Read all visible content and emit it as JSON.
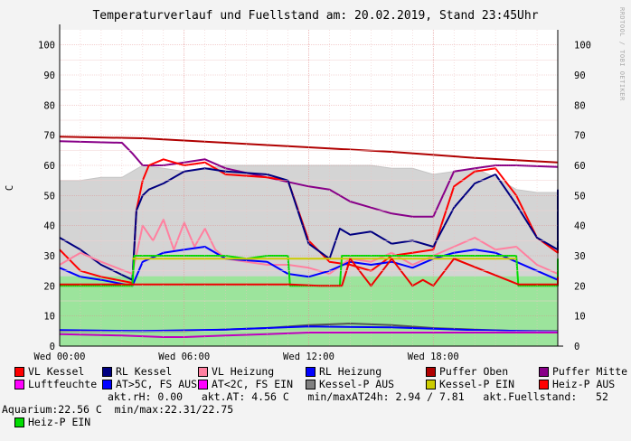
{
  "header": {
    "title": "Temperaturverlauf und Fuellstand am: 20.02.2019, Stand 23:45Uhr",
    "side_note": "RRDTOOL / TOBI OETIKER"
  },
  "chart_data": {
    "type": "line",
    "ylabel": "C",
    "ylim": [
      0,
      105
    ],
    "yticks": [
      0,
      10,
      20,
      30,
      40,
      50,
      60,
      70,
      80,
      90,
      100
    ],
    "xlim_hours": [
      0,
      24
    ],
    "xticks": [
      {
        "h": 0,
        "label": "Wed 00:00"
      },
      {
        "h": 6,
        "label": "Wed 06:00"
      },
      {
        "h": 12,
        "label": "Wed 12:00"
      },
      {
        "h": 18,
        "label": "Wed 18:00"
      }
    ],
    "grid": true,
    "series": [
      {
        "name": "Fuellstand",
        "kind": "area",
        "color": "#d4d4d4",
        "stroke": "#c4c4c4",
        "points": [
          [
            0,
            55
          ],
          [
            1,
            55
          ],
          [
            2,
            56
          ],
          [
            3,
            56
          ],
          [
            4,
            60
          ],
          [
            5,
            59
          ],
          [
            6,
            58
          ],
          [
            7,
            59
          ],
          [
            8,
            60
          ],
          [
            9,
            60
          ],
          [
            10,
            60
          ],
          [
            11,
            60
          ],
          [
            12,
            60
          ],
          [
            13,
            60
          ],
          [
            14,
            60
          ],
          [
            15,
            60
          ],
          [
            16,
            59
          ],
          [
            17,
            59
          ],
          [
            18,
            57
          ],
          [
            19,
            58
          ],
          [
            20,
            59
          ],
          [
            21,
            56
          ],
          [
            22,
            52
          ],
          [
            23,
            51
          ],
          [
            24,
            51
          ]
        ]
      },
      {
        "name": "Heiz-P EIN (area)",
        "kind": "area",
        "color": "#9ce49c",
        "stroke": "#9ce49c",
        "points": [
          [
            0,
            23
          ],
          [
            24,
            23
          ]
        ]
      },
      {
        "name": "Puffer Oben",
        "color": "#b00000",
        "points": [
          [
            0,
            69.5
          ],
          [
            4,
            69
          ],
          [
            8,
            67.5
          ],
          [
            12,
            66
          ],
          [
            16,
            64.5
          ],
          [
            20,
            62.5
          ],
          [
            24,
            61
          ]
        ]
      },
      {
        "name": "Puffer Mitte",
        "color": "#880088",
        "points": [
          [
            0,
            68
          ],
          [
            3,
            67.5
          ],
          [
            3.5,
            64
          ],
          [
            4,
            60
          ],
          [
            5,
            60
          ],
          [
            6,
            61
          ],
          [
            7,
            62
          ],
          [
            8,
            59
          ],
          [
            10,
            56
          ],
          [
            12,
            53
          ],
          [
            13,
            52
          ],
          [
            14,
            48
          ],
          [
            15,
            46
          ],
          [
            16,
            44
          ],
          [
            17,
            43
          ],
          [
            18,
            43
          ],
          [
            19,
            58
          ],
          [
            20,
            59
          ],
          [
            21,
            60
          ],
          [
            22,
            60
          ],
          [
            24,
            59.5
          ]
        ]
      },
      {
        "name": "VL Kessel",
        "color": "#ff0000",
        "points": [
          [
            0,
            32
          ],
          [
            1,
            25
          ],
          [
            2,
            23
          ],
          [
            3.5,
            21
          ],
          [
            3.7,
            45
          ],
          [
            4,
            55
          ],
          [
            4.3,
            60
          ],
          [
            5,
            62
          ],
          [
            6,
            60
          ],
          [
            7,
            61
          ],
          [
            8,
            57
          ],
          [
            10,
            56
          ],
          [
            11,
            55
          ],
          [
            12,
            35
          ],
          [
            13,
            28
          ],
          [
            14,
            27
          ],
          [
            15,
            25
          ],
          [
            16,
            30
          ],
          [
            17,
            31
          ],
          [
            18,
            32
          ],
          [
            19,
            53
          ],
          [
            20,
            58
          ],
          [
            21,
            59
          ],
          [
            22,
            50
          ],
          [
            23,
            36
          ],
          [
            24,
            31
          ],
          [
            24,
            51
          ]
        ]
      },
      {
        "name": "RL Kessel",
        "color": "#000080",
        "points": [
          [
            0,
            36
          ],
          [
            1,
            32
          ],
          [
            2,
            27
          ],
          [
            3.5,
            22
          ],
          [
            3.7,
            45
          ],
          [
            4,
            50
          ],
          [
            4.3,
            52
          ],
          [
            5,
            54
          ],
          [
            6,
            58
          ],
          [
            7,
            59
          ],
          [
            8,
            58
          ],
          [
            10,
            57
          ],
          [
            11,
            55
          ],
          [
            12,
            34
          ],
          [
            13,
            29
          ],
          [
            13.5,
            39
          ],
          [
            14,
            37
          ],
          [
            15,
            38
          ],
          [
            16,
            34
          ],
          [
            17,
            35
          ],
          [
            18,
            33
          ],
          [
            19,
            46
          ],
          [
            20,
            54
          ],
          [
            21,
            57
          ],
          [
            22,
            47
          ],
          [
            23,
            36
          ],
          [
            24,
            32
          ],
          [
            24,
            52
          ]
        ]
      },
      {
        "name": "VL Heizung",
        "color": "#ff80a0",
        "points": [
          [
            0,
            27
          ],
          [
            1,
            31
          ],
          [
            2,
            28
          ],
          [
            3.5,
            24
          ],
          [
            4,
            40
          ],
          [
            4.5,
            35
          ],
          [
            5,
            42
          ],
          [
            5.5,
            32
          ],
          [
            6,
            41
          ],
          [
            6.5,
            33
          ],
          [
            7,
            39
          ],
          [
            7.5,
            32
          ],
          [
            8,
            29
          ],
          [
            10,
            27
          ],
          [
            11,
            27
          ],
          [
            12,
            26
          ],
          [
            13,
            24
          ],
          [
            14,
            29
          ],
          [
            15,
            28
          ],
          [
            16,
            31
          ],
          [
            17,
            27
          ],
          [
            18,
            30
          ],
          [
            19,
            33
          ],
          [
            20,
            36
          ],
          [
            21,
            32
          ],
          [
            22,
            33
          ],
          [
            23,
            27
          ],
          [
            24,
            24
          ]
        ]
      },
      {
        "name": "RL Heizung",
        "color": "#0000ff",
        "points": [
          [
            0,
            26
          ],
          [
            1,
            23
          ],
          [
            2,
            22
          ],
          [
            3.5,
            20
          ],
          [
            4,
            28
          ],
          [
            5,
            31
          ],
          [
            6,
            32
          ],
          [
            7,
            33
          ],
          [
            8,
            29
          ],
          [
            10,
            28
          ],
          [
            11,
            24
          ],
          [
            12,
            23
          ],
          [
            13,
            25
          ],
          [
            14,
            28
          ],
          [
            15,
            27
          ],
          [
            16,
            28
          ],
          [
            17,
            26
          ],
          [
            18,
            29
          ],
          [
            19,
            31
          ],
          [
            20,
            32
          ],
          [
            21,
            31
          ],
          [
            22,
            28
          ],
          [
            23,
            25
          ],
          [
            24,
            22
          ]
        ]
      },
      {
        "name": "Heiz-P EIN",
        "color": "#00dd00",
        "points": [
          [
            0,
            20
          ],
          [
            3.5,
            20
          ],
          [
            3.6,
            30
          ],
          [
            8,
            30
          ],
          [
            9,
            29
          ],
          [
            10,
            30
          ],
          [
            11,
            30
          ],
          [
            11.1,
            20
          ],
          [
            13.5,
            20
          ],
          [
            13.6,
            30
          ],
          [
            18,
            30
          ],
          [
            19,
            30
          ],
          [
            21,
            30
          ],
          [
            22,
            30
          ],
          [
            22.1,
            20
          ],
          [
            24,
            20
          ],
          [
            24,
            29
          ]
        ]
      },
      {
        "name": "Kessel-P EIN",
        "color": "#cccc00",
        "points": [
          [
            3.5,
            29
          ],
          [
            22,
            29
          ]
        ]
      },
      {
        "name": "Heiz-P AUS",
        "color": "#ee0000",
        "points": [
          [
            0,
            20.5
          ],
          [
            3.5,
            20.5
          ],
          [
            11.1,
            20.5
          ],
          [
            12.5,
            20
          ],
          [
            13.6,
            20
          ],
          [
            14,
            29
          ],
          [
            15,
            20
          ],
          [
            16,
            29
          ],
          [
            17,
            20
          ],
          [
            17.5,
            22
          ],
          [
            18,
            20
          ],
          [
            19,
            29
          ],
          [
            22.1,
            20.5
          ],
          [
            24,
            20.5
          ],
          [
            24,
            23
          ]
        ]
      },
      {
        "name": "Kessel-P AUS",
        "color": "#555555",
        "points": [
          [
            0,
            5
          ],
          [
            3,
            5
          ],
          [
            6,
            5
          ],
          [
            10,
            6
          ],
          [
            12,
            7
          ],
          [
            14,
            7.5
          ],
          [
            16,
            7
          ],
          [
            18,
            6
          ],
          [
            20,
            5.5
          ],
          [
            22,
            5
          ],
          [
            24,
            5
          ]
        ]
      },
      {
        "name": "AT>5C, FS AUS",
        "color": "#0000ff",
        "points": [
          [
            0,
            5.3
          ],
          [
            4,
            5
          ],
          [
            8,
            5.5
          ],
          [
            12,
            6.5
          ],
          [
            16,
            6.2
          ],
          [
            20,
            5.3
          ],
          [
            24,
            4.8
          ]
        ]
      },
      {
        "name": "Luftfeuchte",
        "color": "#c000c0",
        "points": [
          [
            0,
            4
          ],
          [
            3,
            3.5
          ],
          [
            5,
            3
          ],
          [
            6,
            3
          ],
          [
            8,
            3.5
          ],
          [
            10,
            4
          ],
          [
            12,
            4.5
          ],
          [
            16,
            4.5
          ],
          [
            20,
            4.5
          ],
          [
            24,
            4.5
          ]
        ]
      }
    ]
  },
  "legend": {
    "row1": [
      {
        "label": "VL Kessel",
        "color": "#ff0000"
      },
      {
        "label": "RL Kessel",
        "color": "#000080"
      },
      {
        "label": "VL Heizung",
        "color": "#ff80a0"
      },
      {
        "label": "RL Heizung",
        "color": "#0000ff"
      },
      {
        "label": "Puffer Oben",
        "color": "#b00000"
      },
      {
        "label": "Puffer Mitte",
        "color": "#880088"
      }
    ],
    "row2": [
      {
        "label": "Luftfeuchte",
        "color": "#ff00ff"
      },
      {
        "label": "AT>5C, FS AUS",
        "color": "#0000ff"
      },
      {
        "label": "AT<2C, FS EIN",
        "color": "#ff00ff"
      },
      {
        "label": "Kessel-P AUS",
        "color": "#808080"
      },
      {
        "label": "Kessel-P EIN",
        "color": "#cccc00"
      },
      {
        "label": "Heiz-P AUS",
        "color": "#ff0000"
      }
    ],
    "row3_item": {
      "label": "Heiz-P EIN",
      "color": "#00dd00"
    },
    "row3_text": "akt.rH: 0.00   akt.AT: 4.56 C   min/maxAT24h: 2.94 / 7.81   akt.Fuellstand:   52",
    "row4_text": "Aquarium:22.56 C  min/max:22.31/22.75"
  }
}
